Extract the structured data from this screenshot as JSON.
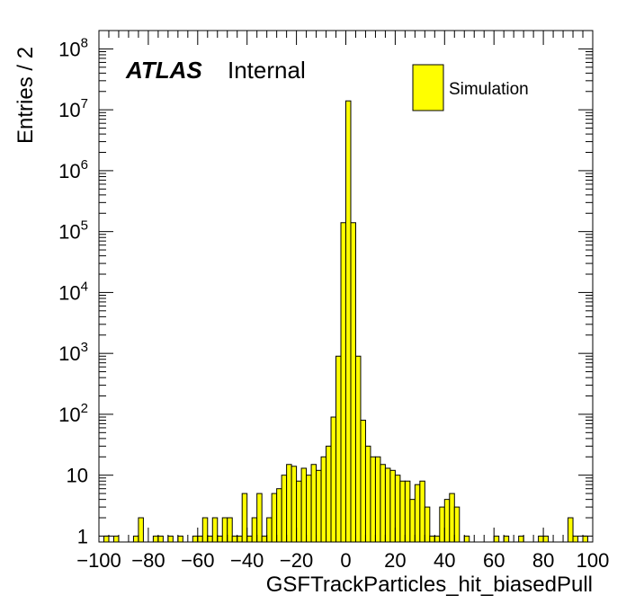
{
  "chart_data": {
    "type": "bar",
    "style": "histogram",
    "title": "",
    "xlabel": "GSFTrackParticles_hit_biasedPull",
    "ylabel": "Entries / 2",
    "xlim": [
      -100,
      100
    ],
    "ylim": [
      0.8,
      200000000
    ],
    "yscale": "log",
    "bin_width": 2,
    "x_ticks": [
      "−100",
      "−80",
      "−60",
      "−40",
      "−20",
      "0",
      "20",
      "40",
      "60",
      "80",
      "100"
    ],
    "y_ticks": [
      {
        "base": "1",
        "exp": ""
      },
      {
        "base": "10",
        "exp": ""
      },
      {
        "base": "10",
        "exp": "2"
      },
      {
        "base": "10",
        "exp": "3"
      },
      {
        "base": "10",
        "exp": "4"
      },
      {
        "base": "10",
        "exp": "5"
      },
      {
        "base": "10",
        "exp": "6"
      },
      {
        "base": "10",
        "exp": "7"
      },
      {
        "base": "10",
        "exp": "8"
      }
    ],
    "annotations": {
      "experiment": "ATLAS",
      "status": "Internal"
    },
    "legend": {
      "position": "top-right",
      "entries": [
        {
          "label": "Simulation",
          "color": "#ffff00"
        }
      ]
    },
    "fill_color": "#ffff00",
    "line_color": "#000000",
    "series": [
      {
        "name": "Simulation",
        "bins": [
          {
            "x0": -98,
            "v": 1
          },
          {
            "x0": -94,
            "v": 1
          },
          {
            "x0": -86,
            "v": 1
          },
          {
            "x0": -84,
            "v": 2
          },
          {
            "x0": -78,
            "v": 1
          },
          {
            "x0": -76,
            "v": 1
          },
          {
            "x0": -72,
            "v": 1
          },
          {
            "x0": -68,
            "v": 1
          },
          {
            "x0": -62,
            "v": 1
          },
          {
            "x0": -60,
            "v": 1
          },
          {
            "x0": -58,
            "v": 2
          },
          {
            "x0": -56,
            "v": 1
          },
          {
            "x0": -54,
            "v": 2
          },
          {
            "x0": -52,
            "v": 1
          },
          {
            "x0": -50,
            "v": 2
          },
          {
            "x0": -48,
            "v": 2
          },
          {
            "x0": -46,
            "v": 1
          },
          {
            "x0": -44,
            "v": 1
          },
          {
            "x0": -42,
            "v": 5
          },
          {
            "x0": -40,
            "v": 1
          },
          {
            "x0": -38,
            "v": 2
          },
          {
            "x0": -36,
            "v": 5
          },
          {
            "x0": -34,
            "v": 1
          },
          {
            "x0": -32,
            "v": 2
          },
          {
            "x0": -30,
            "v": 5
          },
          {
            "x0": -28,
            "v": 6
          },
          {
            "x0": -26,
            "v": 10
          },
          {
            "x0": -24,
            "v": 15
          },
          {
            "x0": -22,
            "v": 14
          },
          {
            "x0": -20,
            "v": 8
          },
          {
            "x0": -18,
            "v": 13
          },
          {
            "x0": -16,
            "v": 10
          },
          {
            "x0": -14,
            "v": 15
          },
          {
            "x0": -12,
            "v": 12
          },
          {
            "x0": -10,
            "v": 20
          },
          {
            "x0": -8,
            "v": 30
          },
          {
            "x0": -6,
            "v": 90
          },
          {
            "x0": -4,
            "v": 900
          },
          {
            "x0": -2,
            "v": 140000
          },
          {
            "x0": 0,
            "v": 14000000
          },
          {
            "x0": 2,
            "v": 140000
          },
          {
            "x0": 4,
            "v": 900
          },
          {
            "x0": 6,
            "v": 80
          },
          {
            "x0": 8,
            "v": 30
          },
          {
            "x0": 10,
            "v": 20
          },
          {
            "x0": 12,
            "v": 20
          },
          {
            "x0": 14,
            "v": 15
          },
          {
            "x0": 16,
            "v": 13
          },
          {
            "x0": 18,
            "v": 12
          },
          {
            "x0": 20,
            "v": 10
          },
          {
            "x0": 22,
            "v": 8
          },
          {
            "x0": 24,
            "v": 8
          },
          {
            "x0": 26,
            "v": 4
          },
          {
            "x0": 28,
            "v": 7
          },
          {
            "x0": 30,
            "v": 8
          },
          {
            "x0": 32,
            "v": 3
          },
          {
            "x0": 34,
            "v": 1
          },
          {
            "x0": 36,
            "v": 1
          },
          {
            "x0": 38,
            "v": 3
          },
          {
            "x0": 40,
            "v": 4
          },
          {
            "x0": 42,
            "v": 5
          },
          {
            "x0": 44,
            "v": 3
          },
          {
            "x0": 48,
            "v": 1
          },
          {
            "x0": 60,
            "v": 1
          },
          {
            "x0": 64,
            "v": 1
          },
          {
            "x0": 70,
            "v": 1
          },
          {
            "x0": 78,
            "v": 1
          },
          {
            "x0": 80,
            "v": 1
          },
          {
            "x0": 90,
            "v": 2
          },
          {
            "x0": 92,
            "v": 1
          },
          {
            "x0": 96,
            "v": 1
          }
        ]
      }
    ]
  }
}
